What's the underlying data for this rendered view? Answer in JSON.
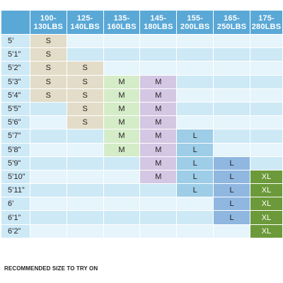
{
  "columns": [
    {
      "line1": "100-",
      "line2": "130LBS"
    },
    {
      "line1": "125-",
      "line2": "140LBS"
    },
    {
      "line1": "135-",
      "line2": "160LBS"
    },
    {
      "line1": "145-",
      "line2": "180LBS"
    },
    {
      "line1": "155-",
      "line2": "200LBS"
    },
    {
      "line1": "165-",
      "line2": "250LBS"
    },
    {
      "line1": "175-",
      "line2": "280LBS"
    }
  ],
  "rows": [
    {
      "height": "5’",
      "cells": [
        "S",
        "",
        "",
        "",
        "",
        "",
        ""
      ]
    },
    {
      "height": "5’1”",
      "cells": [
        "S",
        "",
        "",
        "",
        "",
        "",
        ""
      ]
    },
    {
      "height": "5’2”",
      "cells": [
        "S",
        "S",
        "",
        "",
        "",
        "",
        ""
      ]
    },
    {
      "height": "5’3”",
      "cells": [
        "S",
        "S",
        "M",
        "M",
        "",
        "",
        ""
      ]
    },
    {
      "height": "5’4”",
      "cells": [
        "S",
        "S",
        "M",
        "M",
        "",
        "",
        ""
      ]
    },
    {
      "height": "5’5”",
      "cells": [
        "",
        "S",
        "M",
        "M",
        "",
        "",
        ""
      ]
    },
    {
      "height": "5’6”",
      "cells": [
        "",
        "S",
        "M",
        "M",
        "",
        "",
        ""
      ]
    },
    {
      "height": "5’7”",
      "cells": [
        "",
        "",
        "M",
        "M",
        "L",
        "",
        ""
      ]
    },
    {
      "height": "5’8”",
      "cells": [
        "",
        "",
        "M",
        "M",
        "L",
        "",
        ""
      ]
    },
    {
      "height": "5’9”",
      "cells": [
        "",
        "",
        "",
        "M",
        "L",
        "L",
        ""
      ]
    },
    {
      "height": "5’10”",
      "cells": [
        "",
        "",
        "",
        "M",
        "L",
        "L",
        "XL"
      ]
    },
    {
      "height": "5’11”",
      "cells": [
        "",
        "",
        "",
        "",
        "L",
        "L",
        "XL"
      ]
    },
    {
      "height": "6’",
      "cells": [
        "",
        "",
        "",
        "",
        "",
        "L",
        "XL"
      ]
    },
    {
      "height": "6’1”",
      "cells": [
        "",
        "",
        "",
        "",
        "",
        "L",
        "XL"
      ]
    },
    {
      "height": "6’2”",
      "cells": [
        "",
        "",
        "",
        "",
        "",
        "",
        "XL"
      ]
    }
  ],
  "size_colors": {
    "S": "#e3dcc8",
    "M_col3": "#d5ecc8",
    "M_col4": "#d4c7e3",
    "L_col5": "#9dcde7",
    "L_col6": "#8fb7e0",
    "XL": "#6c9a3a",
    "header": "#5aa8d6",
    "stripe_light": "#e6f4fb",
    "stripe_dark": "#cde9f6"
  },
  "footer": "RECOMMENDED SIZE TO TRY ON"
}
